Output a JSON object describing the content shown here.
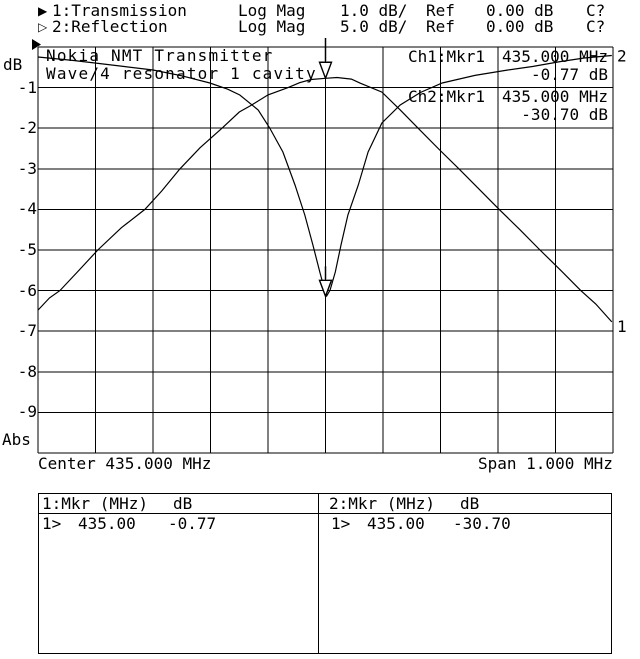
{
  "display": {
    "background": "#ffffff",
    "foreground": "#000000"
  },
  "header": {
    "rows": [
      {
        "icon_glyph": "▶",
        "label": "1:Transmission",
        "format": "Log Mag",
        "scale": "1.0 dB/",
        "ref_label": "Ref",
        "ref_value": "0.00 dB",
        "cal_status": "C?"
      },
      {
        "icon_glyph": "▷",
        "label": "2:Reflection",
        "format": "Log Mag",
        "scale": "5.0 dB/",
        "ref_label": "Ref",
        "ref_value": "0.00 dB",
        "cal_status": "C?"
      }
    ]
  },
  "chart_data": {
    "type": "line",
    "title": "Nokia NMT Transmitter",
    "subtitle": "Wave/4 resonator 1 cavity",
    "x_axis": {
      "center_label": "Center 435.000 MHz",
      "span_label": "Span 1.000 MHz",
      "center_mhz": 435.0,
      "span_mhz": 1.0,
      "min_mhz": 434.5,
      "max_mhz": 435.5
    },
    "y_axis": {
      "unit_label": "dB",
      "mode_label": "Abs",
      "ref_db": 0.0,
      "tick_labels": [
        "-1",
        "-2",
        "-3",
        "-4",
        "-5",
        "-6",
        "-7",
        "-8",
        "-9"
      ]
    },
    "grid": {
      "x_divisions": 10,
      "y_divisions": 10
    },
    "series": [
      {
        "name": "Transmission",
        "channel": "Ch1",
        "db_per_div": 1.0,
        "end_label": "1",
        "points_mhz_db": [
          [
            434.5,
            -6.48
          ],
          [
            434.52,
            -6.18
          ],
          [
            434.538,
            -6.0
          ],
          [
            434.57,
            -5.52
          ],
          [
            434.604,
            -5.0
          ],
          [
            434.645,
            -4.45
          ],
          [
            434.686,
            -4.0
          ],
          [
            434.715,
            -3.55
          ],
          [
            434.747,
            -3.0
          ],
          [
            434.782,
            -2.48
          ],
          [
            434.82,
            -2.0
          ],
          [
            434.85,
            -1.6
          ],
          [
            434.869,
            -1.45
          ],
          [
            434.9,
            -1.18
          ],
          [
            434.935,
            -1.0
          ],
          [
            434.955,
            -0.88
          ],
          [
            434.975,
            -0.8
          ],
          [
            435.0,
            -0.77
          ],
          [
            435.02,
            -0.75
          ],
          [
            435.045,
            -0.79
          ],
          [
            435.06,
            -0.89
          ],
          [
            435.098,
            -1.11
          ],
          [
            435.13,
            -1.55
          ],
          [
            435.161,
            -2.0
          ],
          [
            435.196,
            -2.5
          ],
          [
            435.232,
            -3.0
          ],
          [
            435.267,
            -3.5
          ],
          [
            435.302,
            -4.0
          ],
          [
            435.338,
            -4.5
          ],
          [
            435.373,
            -5.0
          ],
          [
            435.409,
            -5.5
          ],
          [
            435.444,
            -6.0
          ],
          [
            435.47,
            -6.33
          ],
          [
            435.498,
            -6.77
          ]
        ]
      },
      {
        "name": "Reflection",
        "channel": "Ch2",
        "db_per_div": 5.0,
        "end_label": "2",
        "points_mhz_db": [
          [
            434.5,
            -1.23
          ],
          [
            434.56,
            -1.65
          ],
          [
            434.599,
            -1.97
          ],
          [
            434.65,
            -2.4
          ],
          [
            434.7,
            -2.83
          ],
          [
            434.75,
            -3.55
          ],
          [
            434.799,
            -4.43
          ],
          [
            434.83,
            -5.2
          ],
          [
            434.851,
            -5.91
          ],
          [
            434.883,
            -7.76
          ],
          [
            434.903,
            -9.98
          ],
          [
            434.926,
            -12.93
          ],
          [
            434.947,
            -17.0
          ],
          [
            434.964,
            -20.69
          ],
          [
            434.978,
            -24.38
          ],
          [
            434.99,
            -27.71
          ],
          [
            434.999,
            -30.05
          ],
          [
            435.002,
            -30.66
          ],
          [
            435.008,
            -29.93
          ],
          [
            435.017,
            -27.71
          ],
          [
            435.027,
            -24.38
          ],
          [
            435.039,
            -20.69
          ],
          [
            435.057,
            -17.0
          ],
          [
            435.074,
            -12.93
          ],
          [
            435.098,
            -9.36
          ],
          [
            435.13,
            -7.14
          ],
          [
            435.165,
            -5.6
          ],
          [
            435.203,
            -4.43
          ],
          [
            435.26,
            -3.5
          ],
          [
            435.317,
            -2.83
          ],
          [
            435.36,
            -2.4
          ],
          [
            435.408,
            -1.8
          ],
          [
            435.45,
            -1.35
          ],
          [
            435.498,
            -1.05
          ]
        ]
      }
    ],
    "markers": [
      {
        "trace": 1,
        "mhz": 435.0,
        "db": -0.77
      },
      {
        "trace": 2,
        "mhz": 435.0,
        "db": -30.7
      }
    ],
    "readouts": [
      {
        "label": "Ch1:Mkr1",
        "freq": "435.000 MHz",
        "value": "-0.77 dB"
      },
      {
        "label": "Ch2:Mkr1",
        "freq": "435.000 MHz",
        "value": "-30.70 dB"
      }
    ]
  },
  "marker_table": {
    "panels": [
      {
        "header_label": "1:Mkr (MHz)",
        "header_unit": "dB",
        "row": {
          "marker": "1>",
          "freq": "435.00",
          "value": "-0.77"
        }
      },
      {
        "header_label": "2:Mkr (MHz)",
        "header_unit": "dB",
        "row": {
          "marker": "1>",
          "freq": "435.00",
          "value": "-30.70"
        }
      }
    ]
  }
}
